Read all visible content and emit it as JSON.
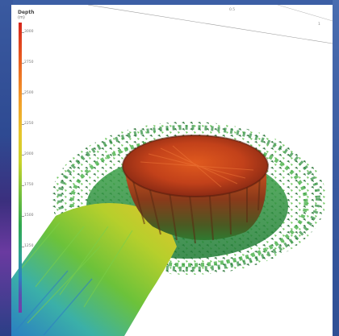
{
  "colorscale": {
    "title": "Depth",
    "unit": "(m)",
    "ticks": [
      "3000",
      "2750",
      "2500",
      "2250",
      "2000",
      "1750",
      "1500",
      "1250"
    ]
  },
  "axis": {
    "labels": [
      "0.5",
      "1"
    ]
  },
  "colors": {
    "frame": "#2c4a8a",
    "peak": "#d6261c",
    "mid": "#2fa84f",
    "low": "#2f7fc2"
  }
}
